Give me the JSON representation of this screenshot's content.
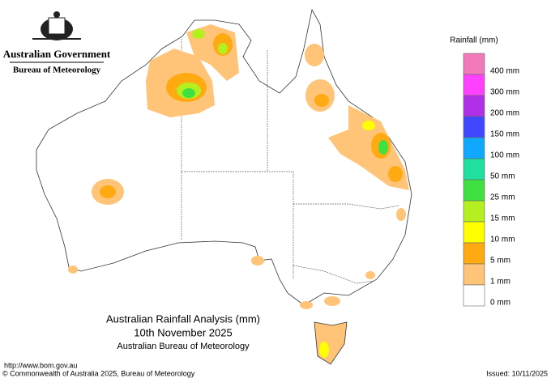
{
  "header": {
    "government": "Australian Government",
    "agency": "Bureau of Meteorology"
  },
  "legend": {
    "title": "Rainfall (mm)",
    "colors": [
      "#f27aba",
      "#ff40ff",
      "#b030e8",
      "#4048ff",
      "#10a8ff",
      "#20e0a0",
      "#40e040",
      "#b4f020",
      "#ffff00",
      "#ffaa10",
      "#ffc478",
      "#ffffff"
    ],
    "labels": [
      "400 mm",
      "300 mm",
      "200 mm",
      "150 mm",
      "100 mm",
      "50 mm",
      "25 mm",
      "15 mm",
      "10 mm",
      "5 mm",
      "1 mm",
      "0 mm"
    ]
  },
  "map": {
    "title": "Australian Rainfall Analysis (mm)",
    "date": "10th November 2025",
    "source": "Australian Bureau of Meteorology"
  },
  "footer": {
    "url": "http://www.bom.gov.au",
    "copyright": "© Commonwealth of Australia 2025, Bureau of Meteorology",
    "issued": "Issued: 10/11/2025"
  }
}
